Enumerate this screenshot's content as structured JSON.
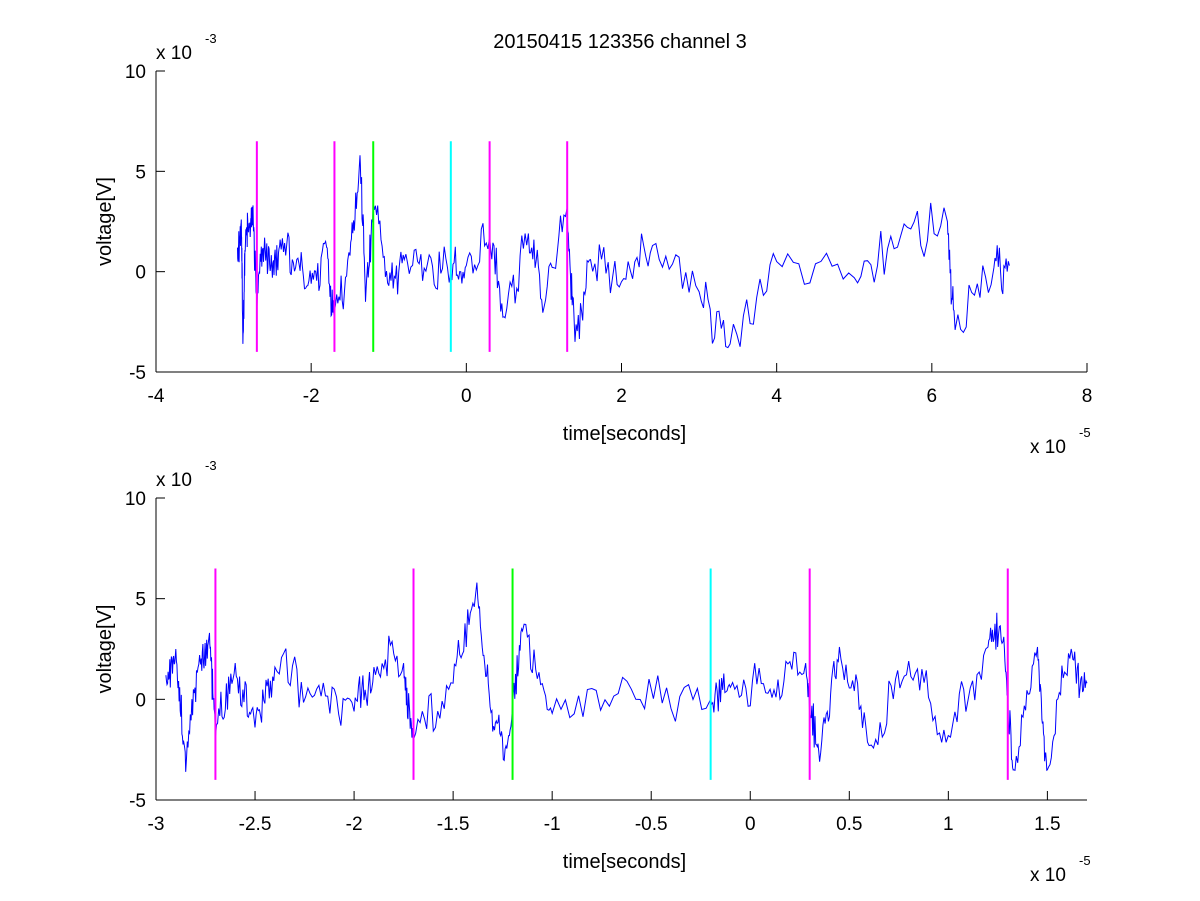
{
  "title": "20150415 123356 channel 3",
  "colors": {
    "signal": "#0000ff",
    "marker_magenta": "#ff00ff",
    "marker_green": "#00ff00",
    "marker_cyan": "#00ffff",
    "axes": "#000000",
    "background": "#ffffff"
  },
  "chart_data": [
    {
      "type": "line",
      "title": "20150415 123356 channel 3",
      "xlabel": "time[seconds]",
      "ylabel": "voltage[V]",
      "x_multiplier_label": "x 10",
      "x_multiplier_exp": "-5",
      "y_multiplier_label": "x 10",
      "y_multiplier_exp": "-3",
      "xlim": [
        -4,
        8
      ],
      "ylim": [
        -5,
        10
      ],
      "xticks": [
        -4,
        -2,
        0,
        2,
        4,
        6,
        8
      ],
      "xtick_labels": [
        "-4",
        "-2",
        "0",
        "2",
        "4",
        "6",
        "8"
      ],
      "yticks": [
        -5,
        0,
        5,
        10
      ],
      "ytick_labels": [
        "-5",
        "0",
        "5",
        "10"
      ],
      "grid": false,
      "signal": {
        "x_range": [
          -2.95,
          7.0
        ],
        "y_approx_range": [
          -3.7,
          5.8
        ],
        "description_points": [
          [
            -2.95,
            1.2
          ],
          [
            -2.9,
            2.6
          ],
          [
            -2.88,
            -3.6
          ],
          [
            -2.85,
            1.0
          ],
          [
            -2.8,
            2.2
          ],
          [
            -2.75,
            3.3
          ],
          [
            -2.7,
            -1.9
          ],
          [
            -2.6,
            1.7
          ],
          [
            -2.5,
            -0.3
          ],
          [
            -2.4,
            1.6
          ],
          [
            -2.2,
            0.2
          ],
          [
            -2.0,
            -0.6
          ],
          [
            -1.8,
            1.2
          ],
          [
            -1.7,
            -2.0
          ],
          [
            -1.5,
            0.8
          ],
          [
            -1.37,
            5.8
          ],
          [
            -1.3,
            -1.5
          ],
          [
            -1.2,
            3.4
          ],
          [
            -1.0,
            -0.7
          ],
          [
            -0.8,
            0.6
          ],
          [
            -0.5,
            0.4
          ],
          [
            -0.2,
            0.0
          ],
          [
            0.0,
            0.3
          ],
          [
            0.3,
            1.7
          ],
          [
            0.5,
            -2.3
          ],
          [
            0.8,
            1.9
          ],
          [
            1.0,
            -1.8
          ],
          [
            1.3,
            3.2
          ],
          [
            1.4,
            -3.5
          ],
          [
            1.6,
            0.6
          ],
          [
            2.0,
            -0.5
          ],
          [
            2.4,
            1.3
          ],
          [
            3.0,
            -1.0
          ],
          [
            3.4,
            -3.6
          ],
          [
            4.0,
            0.5
          ],
          [
            5.0,
            -0.3
          ],
          [
            5.6,
            1.8
          ],
          [
            6.2,
            2.5
          ],
          [
            6.3,
            -2.9
          ],
          [
            6.8,
            0.2
          ],
          [
            7.0,
            0.3
          ]
        ]
      },
      "markers": [
        {
          "x": -2.7,
          "color": "#ff00ff",
          "y_from": -4,
          "y_to": 6.5
        },
        {
          "x": -1.7,
          "color": "#ff00ff",
          "y_from": -4,
          "y_to": 6.5
        },
        {
          "x": -1.2,
          "color": "#00ff00",
          "y_from": -4,
          "y_to": 6.5
        },
        {
          "x": -0.2,
          "color": "#00ffff",
          "y_from": -4,
          "y_to": 6.5
        },
        {
          "x": 0.3,
          "color": "#ff00ff",
          "y_from": -4,
          "y_to": 6.5
        },
        {
          "x": 1.3,
          "color": "#ff00ff",
          "y_from": -4,
          "y_to": 6.5
        }
      ]
    },
    {
      "type": "line",
      "title": "",
      "xlabel": "time[seconds]",
      "ylabel": "voltage[V]",
      "x_multiplier_label": "x 10",
      "x_multiplier_exp": "-5",
      "y_multiplier_label": "x 10",
      "y_multiplier_exp": "-3",
      "xlim": [
        -3.0,
        1.7
      ],
      "ylim": [
        -5,
        10
      ],
      "xticks": [
        -3,
        -2.5,
        -2,
        -1.5,
        -1,
        -0.5,
        0,
        0.5,
        1,
        1.5
      ],
      "xtick_labels": [
        "-3",
        "-2.5",
        "-2",
        "-1.5",
        "-1",
        "-0.5",
        "0",
        "0.5",
        "1",
        "1.5"
      ],
      "yticks": [
        -5,
        0,
        5,
        10
      ],
      "ytick_labels": [
        "-5",
        "0",
        "5",
        "10"
      ],
      "grid": false,
      "signal": {
        "x_range": [
          -2.95,
          1.7
        ],
        "y_approx_range": [
          -3.6,
          5.8
        ],
        "description_points": [
          [
            -2.95,
            1.2
          ],
          [
            -2.9,
            2.5
          ],
          [
            -2.85,
            -3.6
          ],
          [
            -2.78,
            2.2
          ],
          [
            -2.73,
            3.3
          ],
          [
            -2.7,
            -1.9
          ],
          [
            -2.6,
            1.8
          ],
          [
            -2.5,
            -1.4
          ],
          [
            -2.4,
            1.6
          ],
          [
            -2.2,
            0.2
          ],
          [
            -2.0,
            -0.6
          ],
          [
            -1.9,
            1.6
          ],
          [
            -1.75,
            1.8
          ],
          [
            -1.7,
            -2.0
          ],
          [
            -1.5,
            0.8
          ],
          [
            -1.38,
            5.8
          ],
          [
            -1.3,
            -1.6
          ],
          [
            -1.22,
            -1.8
          ],
          [
            -1.15,
            3.4
          ],
          [
            -1.0,
            -0.7
          ],
          [
            -0.6,
            0.5
          ],
          [
            -0.2,
            0.0
          ],
          [
            -0.1,
            0.6
          ],
          [
            0.1,
            0.5
          ],
          [
            0.28,
            1.8
          ],
          [
            0.35,
            -3.1
          ],
          [
            0.45,
            2.6
          ],
          [
            0.6,
            -2.3
          ],
          [
            0.8,
            1.9
          ],
          [
            1.0,
            -1.8
          ],
          [
            1.2,
            2.6
          ],
          [
            1.28,
            3.1
          ],
          [
            1.33,
            -3.5
          ],
          [
            1.45,
            2.6
          ],
          [
            1.5,
            -3.5
          ],
          [
            1.62,
            2.5
          ],
          [
            1.7,
            0.8
          ]
        ]
      },
      "markers": [
        {
          "x": -2.7,
          "color": "#ff00ff",
          "y_from": -4,
          "y_to": 6.5
        },
        {
          "x": -1.7,
          "color": "#ff00ff",
          "y_from": -4,
          "y_to": 6.5
        },
        {
          "x": -1.2,
          "color": "#00ff00",
          "y_from": -4,
          "y_to": 6.5
        },
        {
          "x": -0.2,
          "color": "#00ffff",
          "y_from": -4,
          "y_to": 6.5
        },
        {
          "x": 0.3,
          "color": "#ff00ff",
          "y_from": -4,
          "y_to": 6.5
        },
        {
          "x": 1.3,
          "color": "#ff00ff",
          "y_from": -4,
          "y_to": 6.5
        }
      ]
    }
  ]
}
